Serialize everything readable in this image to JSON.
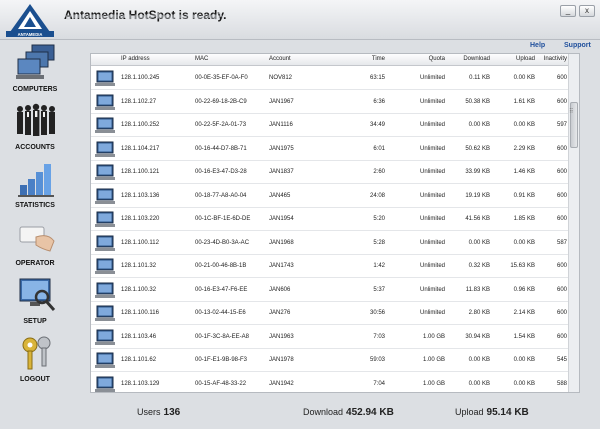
{
  "app": {
    "brand": "ANTAMEDIA",
    "title": "Antamedia HotSpot is ready."
  },
  "window_controls": {
    "minimize": "_",
    "close": "x"
  },
  "links": {
    "help": "Help",
    "support": "Support"
  },
  "sidebar": [
    {
      "label": "COMPUTERS",
      "icon": "computers-icon"
    },
    {
      "label": "ACCOUNTS",
      "icon": "accounts-icon"
    },
    {
      "label": "STATISTICS",
      "icon": "statistics-icon"
    },
    {
      "label": "OPERATOR",
      "icon": "operator-icon"
    },
    {
      "label": "SETUP",
      "icon": "setup-icon"
    },
    {
      "label": "LOGOUT",
      "icon": "logout-icon"
    }
  ],
  "table": {
    "columns": [
      "IP address",
      "MAC",
      "Account",
      "Time",
      "Quota",
      "Download",
      "Upload",
      "Inactivity"
    ],
    "rows": [
      [
        "128.1.100.245",
        "00-0E-35-EF-0A-F0",
        "NOV812",
        "63:15",
        "Unlimited",
        "0.11 KB",
        "0.00 KB",
        "600"
      ],
      [
        "128.1.102.27",
        "00-22-69-18-2B-C9",
        "JAN1967",
        "6:36",
        "Unlimited",
        "50.38 KB",
        "1.61 KB",
        "600"
      ],
      [
        "128.1.100.252",
        "00-22-5F-2A-01-73",
        "JAN1116",
        "34:49",
        "Unlimited",
        "0.00 KB",
        "0.00 KB",
        "597"
      ],
      [
        "128.1.104.217",
        "00-16-44-D7-8B-71",
        "JAN1975",
        "6:01",
        "Unlimited",
        "50.62 KB",
        "2.29 KB",
        "600"
      ],
      [
        "128.1.100.121",
        "00-16-E3-47-D3-28",
        "JAN1837",
        "2:60",
        "Unlimited",
        "33.99 KB",
        "1.46 KB",
        "600"
      ],
      [
        "128.1.103.136",
        "00-18-77-A8-A0-04",
        "JAN465",
        "24:08",
        "Unlimited",
        "19.19 KB",
        "0.91 KB",
        "600"
      ],
      [
        "128.1.103.220",
        "00-1C-BF-1E-6D-DE",
        "JAN1954",
        "5:20",
        "Unlimited",
        "41.56 KB",
        "1.85 KB",
        "600"
      ],
      [
        "128.1.100.112",
        "00-23-4D-B0-3A-AC",
        "JAN1968",
        "5:28",
        "Unlimited",
        "0.00 KB",
        "0.00 KB",
        "587"
      ],
      [
        "128.1.101.32",
        "00-21-00-46-8B-1B",
        "JAN1743",
        "1:42",
        "Unlimited",
        "0.32 KB",
        "15.63 KB",
        "600"
      ],
      [
        "128.1.100.32",
        "00-16-E3-47-F6-EE",
        "JAN606",
        "5:37",
        "Unlimited",
        "11.83 KB",
        "0.96 KB",
        "600"
      ],
      [
        "128.1.100.116",
        "00-13-02-44-15-E6",
        "JAN276",
        "30:56",
        "Unlimited",
        "2.80 KB",
        "2.14 KB",
        "600"
      ],
      [
        "128.1.103.46",
        "00-1F-3C-8A-EE-A8",
        "JAN1963",
        "7:03",
        "1.00 GB",
        "30.94 KB",
        "1.54 KB",
        "600"
      ],
      [
        "128.1.101.62",
        "00-1F-E1-9B-98-F3",
        "JAN1978",
        "59:03",
        "1.00 GB",
        "0.00 KB",
        "0.00 KB",
        "545"
      ],
      [
        "128.1.103.129",
        "00-15-AF-48-33-22",
        "JAN1942",
        "7:04",
        "1.00 GB",
        "0.00 KB",
        "0.00 KB",
        "588"
      ]
    ]
  },
  "footer": {
    "users_label": "Users",
    "users_value": "136",
    "download_label": "Download",
    "download_value": "452.94 KB",
    "upload_label": "Upload",
    "upload_value": "95.14 KB"
  }
}
